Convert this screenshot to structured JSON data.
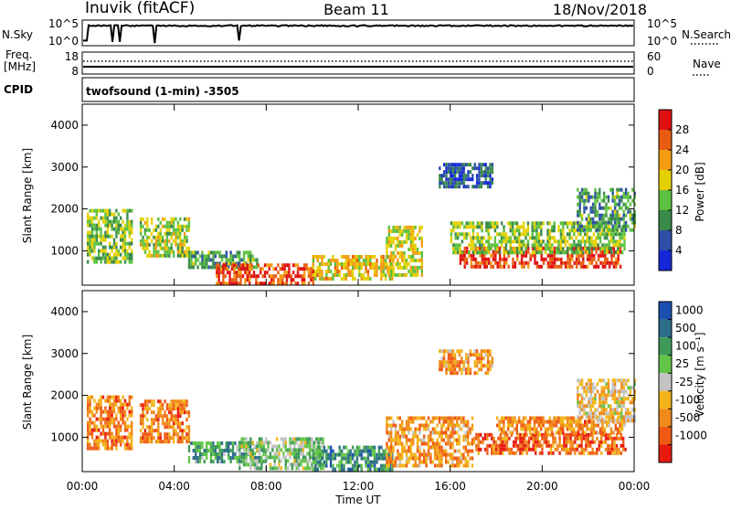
{
  "header": {
    "station": "Inuvik (fitACF)",
    "beam": "Beam 11",
    "date": "18/Nov/2018"
  },
  "top_panels": {
    "nsky": {
      "left_label": "N.Sky",
      "left_ticks": [
        "10^5",
        "10^0"
      ],
      "right_ticks": [
        "10^5",
        "10^0"
      ],
      "right_label": "N.Search"
    },
    "freq": {
      "left_label_1": "Freq.",
      "left_label_2": "[MHz]",
      "left_ticks": [
        "18",
        "8"
      ],
      "right_ticks": [
        "60",
        "0"
      ],
      "right_label": "Nave"
    },
    "cpid": {
      "left_label": "CPID",
      "value": "twofsound (1-min) -3505"
    }
  },
  "xaxis": {
    "ticks": [
      "00:00",
      "04:00",
      "08:00",
      "12:00",
      "16:00",
      "20:00",
      "00:00"
    ],
    "label": "Time UT"
  },
  "colors": {
    "power": [
      "#1428d8",
      "#2e4fa8",
      "#3a8a4a",
      "#5cc040",
      "#e4d000",
      "#f39c12",
      "#e85d12",
      "#e01010"
    ],
    "velocity": [
      "#1b4fb0",
      "#2e6e8a",
      "#3f9a5a",
      "#62c548",
      "#c3c3c3",
      "#f2b418",
      "#f08a1a",
      "#f05a14",
      "#e81a10"
    ]
  },
  "chart_data": [
    {
      "type": "heatmap",
      "title": "Power",
      "xlabel": "Time UT",
      "ylabel": "Slant Range [km]",
      "xlim_hours": [
        0,
        24
      ],
      "ylim_km": [
        180,
        4500
      ],
      "yticks": [
        1000,
        2000,
        3000,
        4000
      ],
      "colorbar": {
        "label": "Power [dB]",
        "ticks": [
          "4",
          "8",
          "12",
          "16",
          "20",
          "24",
          "28"
        ]
      },
      "blobs": [
        {
          "t0": 0.2,
          "t1": 2.2,
          "r0": 700,
          "r1": 2000,
          "level": 0.45
        },
        {
          "t0": 2.5,
          "t1": 4.6,
          "r0": 900,
          "r1": 1800,
          "level": 0.5
        },
        {
          "t0": 4.6,
          "t1": 7.6,
          "r0": 600,
          "r1": 1000,
          "level": 0.35
        },
        {
          "t0": 5.8,
          "t1": 10.0,
          "r0": 250,
          "r1": 700,
          "level": 0.85
        },
        {
          "t0": 10.0,
          "t1": 13.5,
          "r0": 300,
          "r1": 900,
          "level": 0.6
        },
        {
          "t0": 13.2,
          "t1": 14.8,
          "r0": 400,
          "r1": 1600,
          "level": 0.55
        },
        {
          "t0": 15.5,
          "t1": 17.8,
          "r0": 2500,
          "r1": 3100,
          "level": 0.2
        },
        {
          "t0": 16.4,
          "t1": 23.4,
          "r0": 650,
          "r1": 1100,
          "level": 0.9
        },
        {
          "t0": 16.0,
          "t1": 23.6,
          "r0": 1000,
          "r1": 1700,
          "level": 0.45
        },
        {
          "t0": 21.5,
          "t1": 24.0,
          "r0": 1500,
          "r1": 2500,
          "level": 0.35
        }
      ]
    },
    {
      "type": "heatmap",
      "title": "Velocity",
      "xlabel": "Time UT",
      "ylabel": "Slant Range [km]",
      "xlim_hours": [
        0,
        24
      ],
      "ylim_km": [
        180,
        4500
      ],
      "yticks": [
        1000,
        2000,
        3000,
        4000
      ],
      "colorbar": {
        "label": "Velocity [m s⁻¹]",
        "ticks": [
          "1000",
          "500",
          "100",
          "25",
          "-25",
          "-100",
          "-500",
          "-1000"
        ]
      },
      "blobs": [
        {
          "t0": 0.2,
          "t1": 2.2,
          "r0": 700,
          "r1": 2000,
          "level": 0.75
        },
        {
          "t0": 2.5,
          "t1": 4.6,
          "r0": 900,
          "r1": 1900,
          "level": 0.75
        },
        {
          "t0": 4.6,
          "t1": 8.0,
          "r0": 400,
          "r1": 900,
          "level": 0.3
        },
        {
          "t0": 6.8,
          "t1": 10.5,
          "r0": 250,
          "r1": 1000,
          "level": 0.42
        },
        {
          "t0": 10.0,
          "t1": 13.5,
          "r0": 250,
          "r1": 800,
          "level": 0.25
        },
        {
          "t0": 13.2,
          "t1": 17.0,
          "r0": 300,
          "r1": 1500,
          "level": 0.7
        },
        {
          "t0": 15.5,
          "t1": 17.8,
          "r0": 2500,
          "r1": 3100,
          "level": 0.7
        },
        {
          "t0": 17.0,
          "t1": 23.6,
          "r0": 600,
          "r1": 1100,
          "level": 0.8
        },
        {
          "t0": 18.0,
          "t1": 23.6,
          "r0": 1100,
          "r1": 1500,
          "level": 0.72
        },
        {
          "t0": 21.5,
          "t1": 24.0,
          "r0": 1400,
          "r1": 2400,
          "level": 0.6
        }
      ]
    }
  ]
}
